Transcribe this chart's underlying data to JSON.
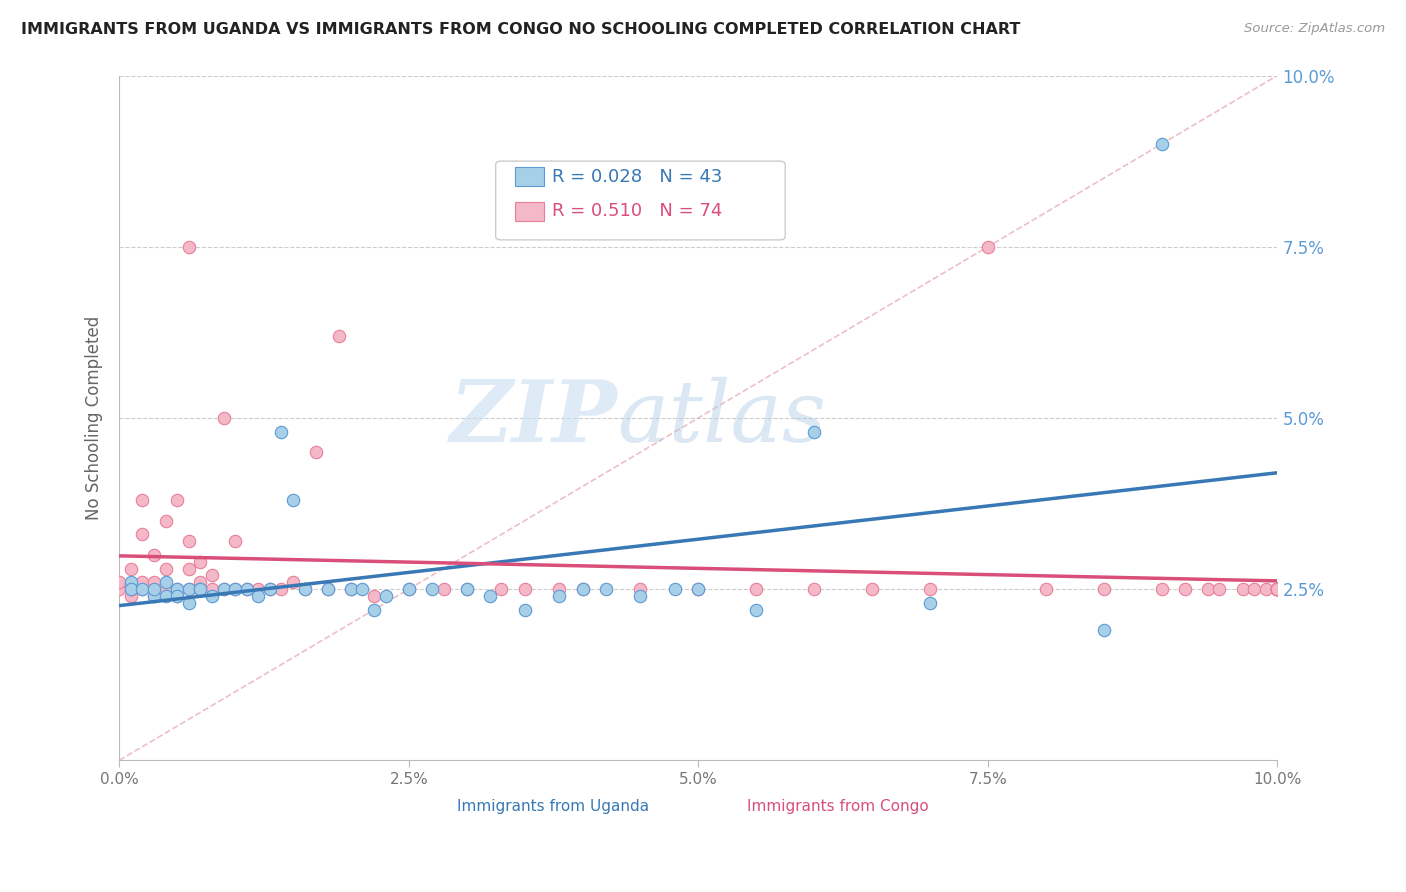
{
  "title": "IMMIGRANTS FROM UGANDA VS IMMIGRANTS FROM CONGO NO SCHOOLING COMPLETED CORRELATION CHART",
  "source": "Source: ZipAtlas.com",
  "ylabel": "No Schooling Completed",
  "xlim": [
    0.0,
    0.1
  ],
  "ylim": [
    0.0,
    0.1
  ],
  "xtick_labels": [
    "0.0%",
    "",
    "2.5%",
    "",
    "5.0%",
    "",
    "7.5%",
    "",
    "10.0%"
  ],
  "xtick_vals": [
    0.0,
    0.0125,
    0.025,
    0.0375,
    0.05,
    0.0625,
    0.075,
    0.0875,
    0.1
  ],
  "ytick_labels": [
    "2.5%",
    "5.0%",
    "7.5%",
    "10.0%"
  ],
  "ytick_vals": [
    0.025,
    0.05,
    0.075,
    0.1
  ],
  "uganda_color": "#a8cfe8",
  "uganda_edge_color": "#5b9bd5",
  "congo_color": "#f4b8c8",
  "congo_edge_color": "#e87f9a",
  "uganda_line_color": "#3878b4",
  "congo_line_color": "#d94f7a",
  "diag_line_color": "#e8b0b8",
  "legend_R_uganda": "R = 0.028",
  "legend_N_uganda": "N = 43",
  "legend_R_congo": "R = 0.510",
  "legend_N_congo": "N = 74",
  "watermark_zip": "ZIP",
  "watermark_atlas": "atlas",
  "background_color": "#ffffff",
  "grid_color": "#cccccc",
  "right_axis_color": "#5b9bd5",
  "uganda_x": [
    0.001,
    0.001,
    0.002,
    0.003,
    0.003,
    0.004,
    0.004,
    0.005,
    0.005,
    0.006,
    0.006,
    0.007,
    0.007,
    0.008,
    0.009,
    0.01,
    0.011,
    0.012,
    0.013,
    0.014,
    0.015,
    0.016,
    0.018,
    0.02,
    0.021,
    0.022,
    0.023,
    0.025,
    0.027,
    0.03,
    0.032,
    0.035,
    0.038,
    0.04,
    0.042,
    0.045,
    0.048,
    0.05,
    0.055,
    0.06,
    0.07,
    0.085,
    0.09
  ],
  "uganda_y": [
    0.026,
    0.025,
    0.025,
    0.024,
    0.025,
    0.024,
    0.026,
    0.025,
    0.024,
    0.025,
    0.023,
    0.025,
    0.025,
    0.024,
    0.025,
    0.025,
    0.025,
    0.024,
    0.025,
    0.048,
    0.038,
    0.025,
    0.025,
    0.025,
    0.025,
    0.022,
    0.024,
    0.025,
    0.025,
    0.025,
    0.024,
    0.022,
    0.024,
    0.025,
    0.025,
    0.024,
    0.025,
    0.025,
    0.022,
    0.048,
    0.023,
    0.019,
    0.09
  ],
  "congo_x": [
    0.0,
    0.0,
    0.001,
    0.001,
    0.001,
    0.002,
    0.002,
    0.002,
    0.002,
    0.003,
    0.003,
    0.003,
    0.004,
    0.004,
    0.004,
    0.005,
    0.005,
    0.005,
    0.006,
    0.006,
    0.006,
    0.006,
    0.007,
    0.007,
    0.007,
    0.008,
    0.008,
    0.009,
    0.009,
    0.01,
    0.01,
    0.011,
    0.012,
    0.013,
    0.014,
    0.015,
    0.016,
    0.017,
    0.018,
    0.019,
    0.02,
    0.022,
    0.025,
    0.028,
    0.03,
    0.033,
    0.035,
    0.038,
    0.04,
    0.045,
    0.05,
    0.055,
    0.06,
    0.065,
    0.07,
    0.075,
    0.08,
    0.085,
    0.09,
    0.092,
    0.094,
    0.095,
    0.097,
    0.098,
    0.099,
    0.1,
    0.1,
    0.1,
    0.1,
    0.1,
    0.1,
    0.1,
    0.1,
    0.1
  ],
  "congo_y": [
    0.025,
    0.026,
    0.024,
    0.025,
    0.028,
    0.025,
    0.026,
    0.033,
    0.038,
    0.024,
    0.026,
    0.03,
    0.025,
    0.028,
    0.035,
    0.024,
    0.025,
    0.038,
    0.025,
    0.028,
    0.032,
    0.075,
    0.025,
    0.026,
    0.029,
    0.025,
    0.027,
    0.025,
    0.05,
    0.025,
    0.032,
    0.025,
    0.025,
    0.025,
    0.025,
    0.026,
    0.025,
    0.045,
    0.025,
    0.062,
    0.025,
    0.024,
    0.025,
    0.025,
    0.025,
    0.025,
    0.025,
    0.025,
    0.025,
    0.025,
    0.025,
    0.025,
    0.025,
    0.025,
    0.025,
    0.075,
    0.025,
    0.025,
    0.025,
    0.025,
    0.025,
    0.025,
    0.025,
    0.025,
    0.025,
    0.025,
    0.025,
    0.025,
    0.025,
    0.025,
    0.025,
    0.025,
    0.025,
    0.025
  ]
}
